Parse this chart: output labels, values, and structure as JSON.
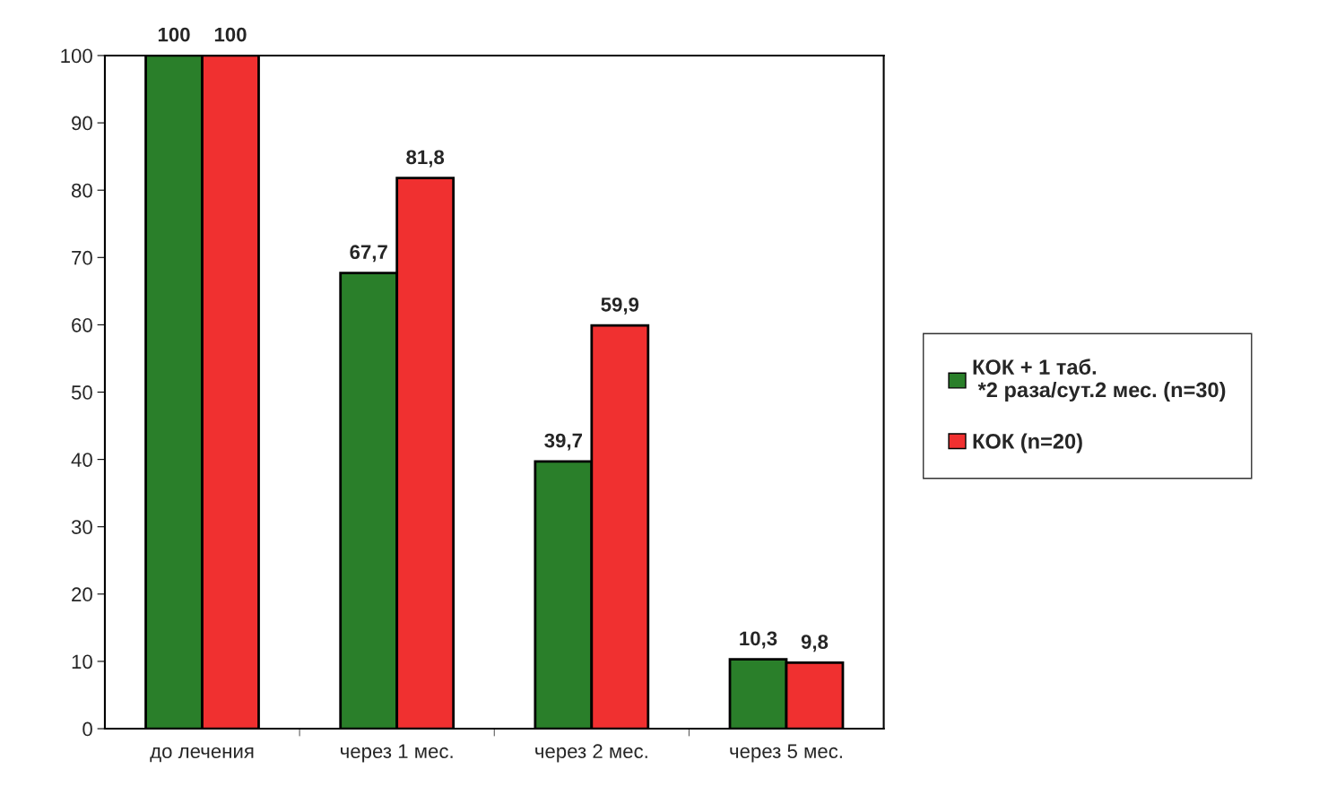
{
  "chart_data": {
    "type": "bar",
    "categories": [
      "до лечения",
      "через 1 мес.",
      "через 2 мес.",
      "через 5 мес."
    ],
    "series": [
      {
        "name": "КОК + 1 таб. *2 раза/сут.2 мес. (n=30)",
        "color": "#2a7f2a",
        "values": [
          100,
          67.7,
          39.7,
          10.3
        ],
        "value_labels": [
          "100",
          "67,7",
          "39,7",
          "10,3"
        ]
      },
      {
        "name": "КОК (n=20)",
        "color": "#f03030",
        "values": [
          100,
          81.8,
          59.9,
          9.8
        ],
        "value_labels": [
          "100",
          "81,8",
          "59,9",
          "9,8"
        ]
      }
    ],
    "ylim": [
      0,
      100
    ],
    "yticks": [
      0,
      10,
      20,
      30,
      40,
      50,
      60,
      70,
      80,
      90,
      100
    ],
    "grid": false,
    "legend": "right"
  }
}
